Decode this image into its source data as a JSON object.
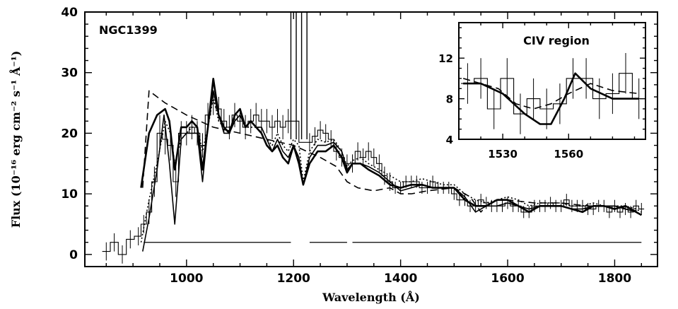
{
  "chart_data": [
    {
      "type": "line",
      "title": "NGC1399",
      "xlabel": "Wavelength (Å)",
      "ylabel": "Flux (10⁻¹⁶ erg cm⁻² s⁻¹ Å⁻¹)",
      "xlim": [
        810,
        1880
      ],
      "ylim": [
        -2,
        40
      ],
      "xticks": [
        1000,
        1200,
        1400,
        1600,
        1800
      ],
      "yticks": [
        0,
        10,
        20,
        30,
        40
      ],
      "grid": false,
      "legend": "none",
      "observed": {
        "x": [
          850,
          865,
          880,
          895,
          910,
          920,
          930,
          940,
          950,
          960,
          970,
          980,
          990,
          1000,
          1010,
          1020,
          1030,
          1040,
          1050,
          1060,
          1070,
          1080,
          1090,
          1100,
          1110,
          1120,
          1130,
          1140,
          1150,
          1160,
          1170,
          1180,
          1190,
          1230,
          1240,
          1250,
          1260,
          1270,
          1280,
          1290,
          1300,
          1310,
          1320,
          1330,
          1340,
          1350,
          1360,
          1370,
          1380,
          1390,
          1400,
          1410,
          1420,
          1430,
          1440,
          1450,
          1460,
          1470,
          1480,
          1490,
          1500,
          1510,
          1520,
          1530,
          1540,
          1550,
          1560,
          1570,
          1580,
          1590,
          1600,
          1610,
          1620,
          1630,
          1640,
          1650,
          1660,
          1670,
          1680,
          1690,
          1700,
          1710,
          1720,
          1730,
          1740,
          1750,
          1760,
          1770,
          1780,
          1790,
          1800,
          1810,
          1820,
          1830,
          1840,
          1850
        ],
        "y": [
          0.5,
          2,
          0,
          2.5,
          3,
          5,
          7,
          12,
          20,
          19,
          18,
          12,
          20,
          20,
          21,
          20,
          18,
          23,
          25,
          24,
          22,
          21,
          23,
          22,
          21,
          22,
          23,
          22,
          22,
          21,
          22,
          21,
          22,
          18.5,
          19.5,
          20.5,
          20,
          19,
          17,
          16,
          15,
          15,
          17,
          16,
          17,
          16,
          15,
          13,
          12,
          11,
          11,
          12,
          12,
          12,
          11,
          11,
          12,
          11,
          11,
          11,
          10,
          9,
          9,
          8,
          8,
          9,
          8.5,
          8,
          8,
          8,
          8.5,
          8,
          8,
          7,
          7,
          8,
          8,
          8,
          8.5,
          8,
          8,
          9,
          8,
          8,
          8,
          7.5,
          7.5,
          8,
          8,
          7,
          8,
          7,
          7.5,
          7,
          8,
          7.5
        ],
        "err": [
          1.5,
          1.5,
          1.5,
          1.5,
          1.5,
          1.5,
          2,
          2.5,
          3,
          2.5,
          2.5,
          2.5,
          2,
          2,
          2,
          2,
          2,
          2,
          2,
          2,
          2,
          2,
          2,
          2,
          2,
          2,
          2,
          2,
          2,
          2,
          2,
          2,
          2,
          1.5,
          1.5,
          1.5,
          1.5,
          1.5,
          1.5,
          1.5,
          1.5,
          1.5,
          1.5,
          1.5,
          1.5,
          1.5,
          1.5,
          1.5,
          1.5,
          1,
          1,
          1,
          1,
          1,
          1,
          1,
          1,
          1,
          1,
          1,
          1,
          1,
          1,
          1,
          1,
          1,
          1,
          1,
          1,
          1,
          1,
          1,
          1,
          1,
          1,
          1,
          1,
          1,
          1,
          1,
          1,
          1,
          1,
          1,
          1,
          1,
          1,
          1,
          1,
          1,
          1,
          1,
          1,
          1,
          1,
          1
        ]
      },
      "geocoronal_feature": {
        "x": [
          1195,
          1205,
          1215,
          1225
        ],
        "y_top": 40,
        "y_base": 19
      },
      "series": [
        {
          "style": "solid-thick",
          "x": [
            915,
            930,
            945,
            960,
            968,
            978,
            990,
            1000,
            1010,
            1020,
            1030,
            1040,
            1050,
            1060,
            1070,
            1080,
            1090,
            1100,
            1110,
            1120,
            1130,
            1140,
            1150,
            1160,
            1170,
            1180,
            1190,
            1200,
            1210,
            1218,
            1230,
            1245,
            1260,
            1275,
            1290,
            1300,
            1310,
            1325,
            1340,
            1360,
            1380,
            1400,
            1420,
            1440,
            1460,
            1480,
            1500,
            1520,
            1540,
            1560,
            1580,
            1600,
            1620,
            1640,
            1660,
            1680,
            1700,
            1720,
            1740,
            1760,
            1780,
            1800,
            1820,
            1840,
            1850
          ],
          "y": [
            11,
            20,
            23,
            24,
            22,
            14,
            21,
            21,
            22,
            21,
            14,
            21,
            29,
            23,
            21,
            20,
            23,
            24,
            21,
            22,
            21,
            20,
            18,
            17,
            18,
            16,
            15,
            18,
            15,
            11.5,
            15,
            17,
            17,
            18,
            16,
            13.5,
            15,
            15,
            14,
            13,
            11.5,
            11,
            11.5,
            11.5,
            11,
            11,
            11,
            9,
            8,
            8,
            9,
            9,
            8,
            7,
            8,
            8,
            8,
            7.5,
            7,
            8,
            8,
            7.5,
            8,
            7,
            6.5
          ]
        },
        {
          "style": "dotted",
          "x": [
            915,
            930,
            945,
            960,
            970,
            978,
            990,
            1000,
            1010,
            1020,
            1030,
            1040,
            1050,
            1060,
            1070,
            1080,
            1090,
            1100,
            1110,
            1120,
            1130,
            1140,
            1150,
            1160,
            1170,
            1180,
            1190,
            1200,
            1210,
            1218,
            1230,
            1245,
            1260,
            1275,
            1290,
            1300,
            1310,
            1325,
            1340,
            1360,
            1380,
            1400,
            1420,
            1440,
            1460,
            1480,
            1500,
            1520,
            1540,
            1560,
            1580,
            1600,
            1620,
            1640,
            1660,
            1680,
            1700,
            1720,
            1740,
            1760,
            1780,
            1800,
            1820,
            1840,
            1850
          ],
          "y": [
            2,
            9,
            15,
            22,
            20,
            15,
            19,
            20,
            21,
            21,
            17,
            21,
            26,
            22,
            21,
            21,
            22,
            23,
            21,
            21,
            21,
            21,
            19,
            18,
            20,
            18,
            17,
            19,
            18,
            12,
            17,
            19,
            18.5,
            19,
            17,
            14.5,
            15.5,
            16,
            15,
            14,
            13,
            12,
            12,
            12.5,
            12,
            11.5,
            11.5,
            10,
            9,
            8.5,
            9,
            9.5,
            9,
            8,
            8.5,
            8.5,
            8.5,
            8,
            8,
            8.5,
            8,
            8,
            8,
            7.5,
            7
          ]
        },
        {
          "style": "solid-thin",
          "x": [
            918,
            930,
            945,
            958,
            968,
            978,
            990,
            1000,
            1010,
            1020,
            1030,
            1040,
            1050,
            1060,
            1070,
            1080,
            1090,
            1100,
            1110,
            1120,
            1130,
            1140,
            1150,
            1160,
            1170,
            1180,
            1190,
            1200,
            1210,
            1218,
            1230,
            1245,
            1260,
            1275,
            1290,
            1300,
            1310,
            1325,
            1340,
            1360,
            1380,
            1400,
            1420,
            1440,
            1460,
            1480,
            1500,
            1520,
            1540,
            1560,
            1580,
            1600,
            1620,
            1640,
            1660,
            1680,
            1700,
            1720,
            1740,
            1760,
            1780,
            1800,
            1820,
            1840,
            1850
          ],
          "y": [
            0.5,
            6,
            14,
            23,
            15,
            5,
            19,
            20,
            20,
            20,
            12,
            21,
            27,
            23,
            20,
            20,
            22,
            23,
            21,
            22,
            21,
            21,
            19,
            17,
            19,
            17,
            16,
            18,
            16,
            11.5,
            16,
            18,
            18,
            18.5,
            17,
            14,
            15,
            15,
            14.5,
            13.5,
            12,
            10.5,
            11,
            11.5,
            11,
            11,
            11,
            9.5,
            7,
            8,
            8,
            8.5,
            8,
            7.5,
            8,
            8,
            8,
            7.5,
            7.5,
            8,
            8,
            8,
            7.5,
            7,
            6.5
          ]
        },
        {
          "style": "dashed",
          "x": [
            918,
            930,
            945,
            960,
            980,
            1000,
            1050,
            1100,
            1150,
            1200,
            1250,
            1280,
            1300,
            1320,
            1350,
            1380,
            1400,
            1420,
            1450,
            1500,
            1530,
            1550,
            1560,
            1580,
            1600,
            1650,
            1700,
            1750,
            1800,
            1850
          ],
          "y": [
            11,
            27,
            26,
            25,
            24,
            23,
            21,
            20,
            19,
            18,
            16,
            14.5,
            12,
            11,
            10.5,
            11,
            10,
            10,
            10.5,
            11,
            9.5,
            7,
            8,
            9,
            9,
            8.5,
            8.5,
            8,
            8,
            7
          ]
        }
      ],
      "baselines": [
        {
          "x": [
            920,
            1195
          ]
        },
        {
          "x": [
            1230,
            1300
          ]
        },
        {
          "x": [
            1310,
            1850
          ]
        }
      ],
      "baseline_level": 2
    },
    {
      "type": "line",
      "title": "CIV region",
      "xlim": [
        1510,
        1595
      ],
      "ylim": [
        4,
        15.5
      ],
      "xticks": [
        1530,
        1560
      ],
      "yticks": [
        4,
        8,
        12
      ],
      "observed": {
        "x": [
          1514,
          1520,
          1526,
          1532,
          1538,
          1544,
          1550,
          1556,
          1562,
          1568,
          1574,
          1580,
          1586,
          1592
        ],
        "y": [
          9.5,
          10,
          7,
          10,
          6.5,
          8,
          7,
          7.5,
          10,
          10,
          8,
          8.5,
          10.5,
          8
        ],
        "err": [
          2,
          2,
          2,
          2,
          2,
          2,
          2,
          2,
          2,
          2,
          2,
          2,
          2,
          2
        ]
      },
      "series": [
        {
          "style": "solid-thick",
          "x": [
            1512,
            1520,
            1530,
            1540,
            1547,
            1552,
            1558,
            1563,
            1570,
            1580,
            1592
          ],
          "y": [
            9.5,
            9.5,
            8.5,
            6.5,
            5.5,
            5.5,
            8,
            10.5,
            9,
            8,
            8
          ]
        },
        {
          "style": "dashed",
          "x": [
            1512,
            1520,
            1528,
            1536,
            1544,
            1552,
            1560,
            1570,
            1580,
            1592
          ],
          "y": [
            10,
            9.5,
            9,
            7.5,
            7,
            7.5,
            8.5,
            9.5,
            8.8,
            8.5
          ]
        }
      ]
    }
  ]
}
